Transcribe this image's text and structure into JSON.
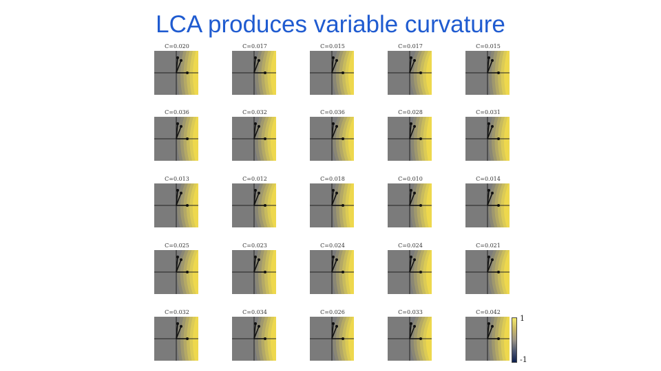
{
  "title": "LCA produces variable curvature",
  "colors": {
    "title": "#1f5bd0",
    "panel_gray": "#7b7b7b",
    "band_colors": [
      "#8a8775",
      "#9f986e",
      "#b4a966",
      "#c8bb5e",
      "#dccb55",
      "#eed84d"
    ],
    "axis": "#222222"
  },
  "panels": [
    [
      "C=0.020",
      "C=0.017",
      "C=0.015",
      "C=0.017",
      "C=0.015"
    ],
    [
      "C=0.036",
      "C=0.032",
      "C=0.036",
      "C=0.028",
      "C=0.031"
    ],
    [
      "C=0.013",
      "C=0.012",
      "C=0.018",
      "C=0.010",
      "C=0.014"
    ],
    [
      "C=0.025",
      "C=0.023",
      "C=0.024",
      "C=0.024",
      "C=0.021"
    ],
    [
      "C=0.032",
      "C=0.034",
      "C=0.026",
      "C=0.033",
      "C=0.042"
    ]
  ],
  "colorbar": {
    "max_label": "1",
    "min_label": "-1"
  }
}
